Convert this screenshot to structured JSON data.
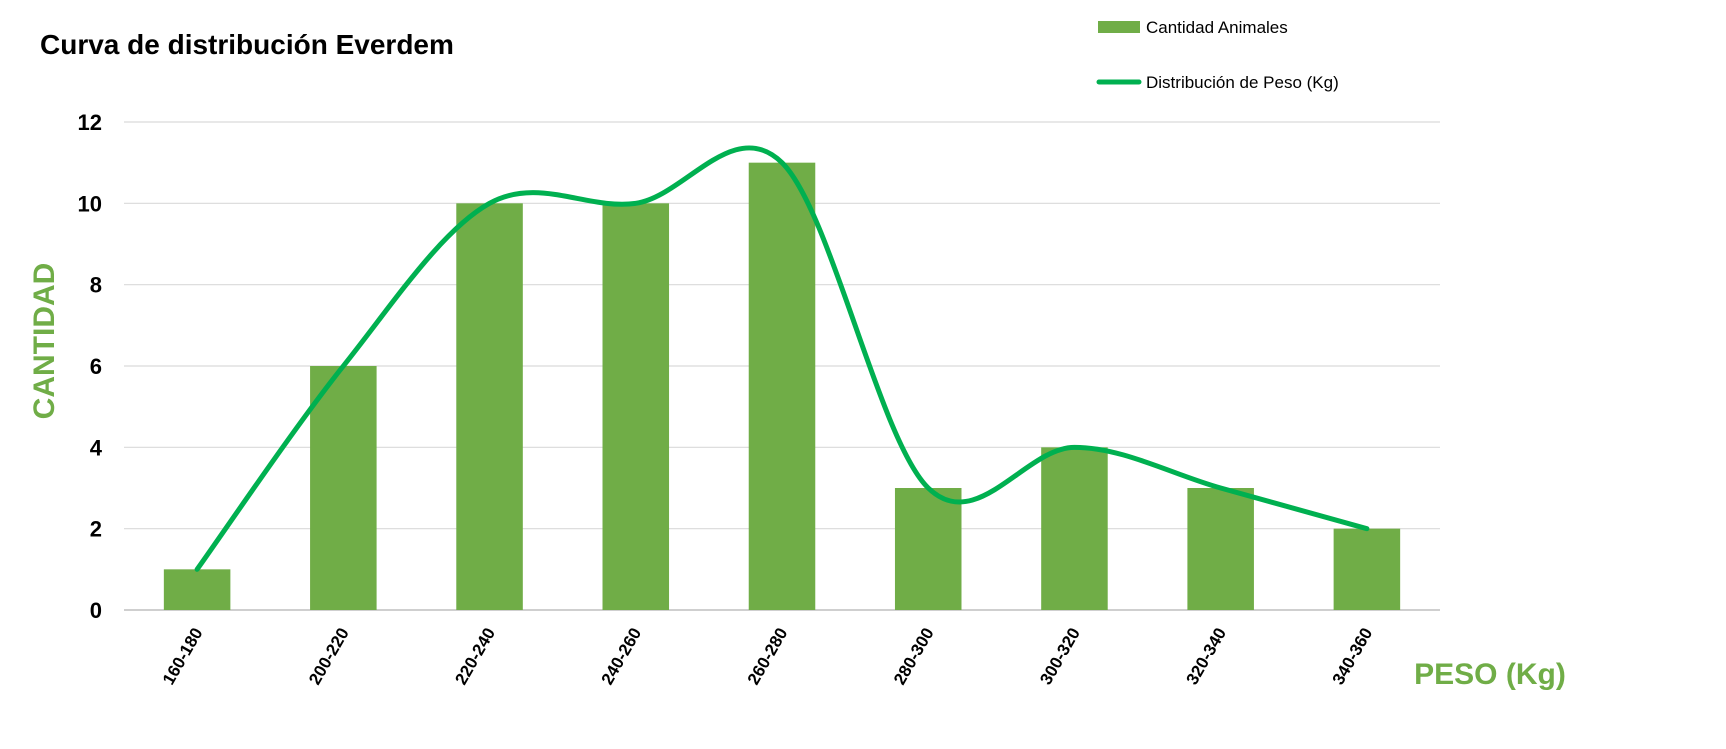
{
  "chart_data": {
    "type": "bar",
    "title": "Curva de distribución Everdem",
    "xlabel": "PESO (Kg)",
    "ylabel": "CANTIDAD",
    "categories": [
      "160-180",
      "200-220",
      "220-240",
      "240-260",
      "260-280",
      "280-300",
      "300-320",
      "320-340",
      "340-360"
    ],
    "ylim": [
      0,
      12
    ],
    "yticks": [
      0,
      2,
      4,
      6,
      8,
      10,
      12
    ],
    "grid": true,
    "legend_position": "top-right",
    "series": [
      {
        "name": "Cantidad Animales",
        "type": "bar",
        "color": "#70AD47",
        "values": [
          1,
          6,
          10,
          10,
          11,
          3,
          4,
          3,
          2
        ]
      },
      {
        "name": "Distribución de Peso (Kg)",
        "type": "line",
        "smooth": true,
        "color": "#00B050",
        "values": [
          1,
          6,
          10,
          10,
          11,
          3,
          4,
          3,
          2
        ]
      }
    ],
    "colors": {
      "axis_title": "#70AD47",
      "gridline": "#D9D9D9",
      "axis_line": "#BFBFBF",
      "text": "#000000"
    }
  }
}
